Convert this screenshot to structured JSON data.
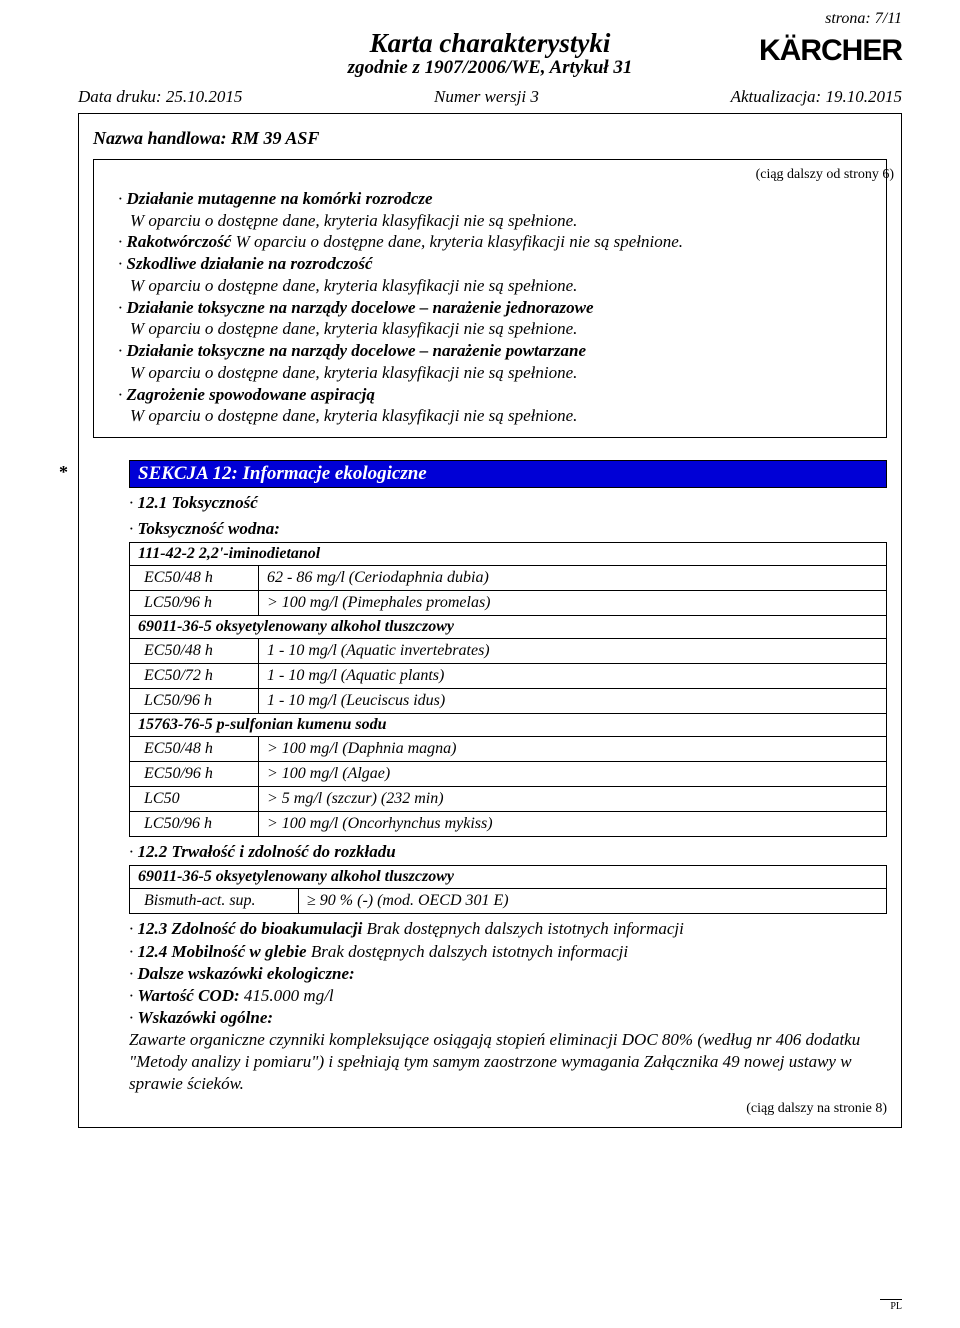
{
  "page_marker": "strona: 7/11",
  "logo_text": "KÄRCHER",
  "header": {
    "title": "Karta charakterystyki",
    "subtitle": "zgodnie z 1907/2006/WE, Artykuł 31"
  },
  "meta": {
    "print_date": "Data druku: 25.10.2015",
    "version": "Numer wersji 3",
    "revision": "Aktualizacja: 19.10.2015"
  },
  "trade_name": "Nazwa handlowa: RM 39 ASF",
  "cont_from": "(ciąg dalszy od strony 6)",
  "block1": {
    "l1": "Działanie mutagenne na komórki rozrodcze",
    "l1b": "W oparciu o dostępne dane, kryteria klasyfikacji nie są spełnione.",
    "l2": "Rakotwórczość",
    "l2b": " W oparciu o dostępne dane, kryteria klasyfikacji nie są spełnione.",
    "l3": "Szkodliwe działanie na rozrodczość",
    "l3b": "W oparciu o dostępne dane, kryteria klasyfikacji nie są spełnione.",
    "l4": "Działanie toksyczne na narządy docelowe – narażenie jednorazowe",
    "l4b": "W oparciu o dostępne dane, kryteria klasyfikacji nie są spełnione.",
    "l5": "Działanie toksyczne na narządy docelowe – narażenie powtarzane",
    "l5b": "W oparciu o dostępne dane, kryteria klasyfikacji nie są spełnione.",
    "l6": "Zagrożenie spowodowane aspiracją",
    "l6b": "W oparciu o dostępne dane, kryteria klasyfikacji nie są spełnione."
  },
  "section12": {
    "header": "SEKCJA 12: Informacje ekologiczne",
    "s12_1": "12.1 Toksyczność",
    "aq_tox": "Toksyczność wodna:",
    "sub1": "111-42-2 2,2'-iminodietanol",
    "rows1": [
      [
        "EC50/48 h",
        "62 - 86 mg/l (Ceriodaphnia dubia)"
      ],
      [
        "LC50/96 h",
        "> 100 mg/l (Pimephales promelas)"
      ]
    ],
    "sub2": "69011-36-5 oksyetylenowany alkohol tluszczowy",
    "rows2": [
      [
        "EC50/48 h",
        "1 - 10 mg/l (Aquatic invertebrates)"
      ],
      [
        "EC50/72 h",
        "1 - 10 mg/l (Aquatic plants)"
      ],
      [
        "LC50/96 h",
        "1 - 10 mg/l (Leuciscus idus)"
      ]
    ],
    "sub3": "15763-76-5 p-sulfonian kumenu sodu",
    "rows3": [
      [
        "EC50/48 h",
        "> 100 mg/l (Daphnia magna)"
      ],
      [
        "EC50/96 h",
        "> 100 mg/l (Algae)"
      ],
      [
        "LC50",
        "> 5 mg/l (szczur) (232 min)"
      ],
      [
        "LC50/96 h",
        "> 100 mg/l (Oncorhynchus mykiss)"
      ]
    ],
    "s12_2": "12.2 Trwałość i zdolność do rozkładu",
    "deg_head": "69011-36-5 oksyetylenowany alkohol tluszczowy",
    "deg_a": "Bismuth-act. sup.",
    "deg_b": "≥ 90 % (-) (mod. OECD 301 E)",
    "s12_3a": "12.3 Zdolność do bioakumulacji",
    "s12_3b": " Brak dostępnych dalszych istotnych informacji",
    "s12_4a": "12.4 Mobilność w glebie",
    "s12_4b": " Brak dostępnych dalszych istotnych informacji",
    "eco_hint": "Dalsze wskazówki ekologiczne:",
    "cod_l": "Wartość COD:",
    "cod_v": " 415.000 mg/l",
    "gen_hint": "Wskazówki ogólne:",
    "gen_text": "Zawarte organiczne czynniki kompleksujące osiągają stopień eliminacji DOC 80% (według nr 406 dodatku \"Metody analizy i pomiaru\") i spełniają tym samym zaostrzone wymagania Załącznika 49 nowej ustawy w sprawie ścieków."
  },
  "cont_to": "(ciąg dalszy na stronie 8)",
  "pl": "PL",
  "colors": {
    "section_bg": "#0000d6",
    "section_fg": "#ffffff",
    "text": "#000000",
    "page_bg": "#ffffff"
  }
}
